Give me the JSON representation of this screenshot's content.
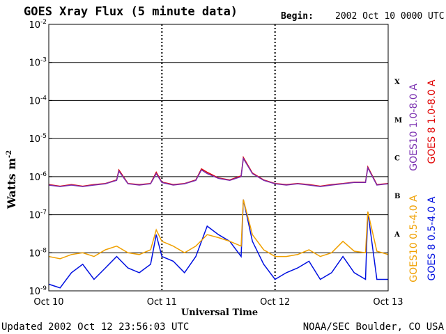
{
  "header": {
    "title": "GOES Xray Flux (5 minute data)",
    "begin_label": "Begin:",
    "begin_value": "2002 Oct 10 0000 UTC"
  },
  "footer": {
    "updated_label": "Updated",
    "updated_value": "2002 Oct 12 23:56:03 UTC",
    "credit": "NOAA/SEC Boulder, CO USA"
  },
  "colors": {
    "goes10_long": "#7a2fb0",
    "goes8_long": "#e00000",
    "goes10_short": "#f0a000",
    "goes8_short": "#0010e0"
  },
  "chart_data": {
    "type": "line",
    "title": "GOES Xray Flux (5 minute data)",
    "ylabel": "Watts m",
    "ylabel_sup": "-2",
    "xlabel": "Universal Time",
    "yscale": "log",
    "ylim": [
      1e-09,
      0.01
    ],
    "y_tick_labels": [
      {
        "base": "10",
        "exp": "-9",
        "value": 1e-09
      },
      {
        "base": "10",
        "exp": "-8",
        "value": 1e-08
      },
      {
        "base": "10",
        "exp": "-7",
        "value": 1e-07
      },
      {
        "base": "10",
        "exp": "-6",
        "value": 1e-06
      },
      {
        "base": "10",
        "exp": "-5",
        "value": 1e-05
      },
      {
        "base": "10",
        "exp": "-4",
        "value": 0.0001
      },
      {
        "base": "10",
        "exp": "-3",
        "value": 0.001
      },
      {
        "base": "10",
        "exp": "-2",
        "value": 0.01
      }
    ],
    "x_tick_labels": [
      {
        "label": "Oct 10",
        "day": 0
      },
      {
        "label": "Oct 11",
        "day": 1
      },
      {
        "label": "Oct 12",
        "day": 2
      },
      {
        "label": "Oct 13",
        "day": 3
      }
    ],
    "xlim_days": [
      0,
      3
    ],
    "flare_classes": [
      {
        "label": "A",
        "value": 3.16e-08
      },
      {
        "label": "B",
        "value": 3.16e-07
      },
      {
        "label": "C",
        "value": 3.16e-06
      },
      {
        "label": "M",
        "value": 3.16e-05
      },
      {
        "label": "X",
        "value": 0.000316
      }
    ],
    "grid": "horizontal at each decade from 1e-8 to 1e-3; dotted verticals at day boundaries",
    "legend_placement": "right, vertical text",
    "series": [
      {
        "name": "GOES10 1.0-8.0 A",
        "color": "#7a2fb0",
        "x": [
          0,
          0.1,
          0.2,
          0.3,
          0.4,
          0.5,
          0.6,
          0.62,
          0.7,
          0.8,
          0.9,
          0.95,
          1.0,
          1.1,
          1.2,
          1.3,
          1.35,
          1.4,
          1.5,
          1.6,
          1.7,
          1.72,
          1.8,
          1.9,
          2.0,
          2.1,
          2.2,
          2.3,
          2.4,
          2.5,
          2.6,
          2.7,
          2.8,
          2.82,
          2.9,
          3.0
        ],
        "y": [
          6e-07,
          5.5e-07,
          6e-07,
          5.5e-07,
          6e-07,
          6.5e-07,
          8e-07,
          1.4e-06,
          6.5e-07,
          6e-07,
          6.5e-07,
          1.2e-06,
          7e-07,
          6e-07,
          6.5e-07,
          8e-07,
          1.5e-06,
          1.2e-06,
          9e-07,
          8e-07,
          1e-06,
          3e-06,
          1.2e-06,
          8e-07,
          6.5e-07,
          6e-07,
          6.5e-07,
          6e-07,
          5.5e-07,
          6e-07,
          6.5e-07,
          7e-07,
          7e-07,
          1.7e-06,
          6e-07,
          6.5e-07
        ]
      },
      {
        "name": "GOES 8 1.0-8.0 A",
        "color": "#e00000",
        "x": [
          0,
          0.1,
          0.2,
          0.3,
          0.4,
          0.5,
          0.6,
          0.62,
          0.7,
          0.8,
          0.9,
          0.95,
          1.0,
          1.1,
          1.2,
          1.3,
          1.35,
          1.4,
          1.5,
          1.6,
          1.7,
          1.72,
          1.8,
          1.9,
          2.0,
          2.1,
          2.2,
          2.3,
          2.4,
          2.5,
          2.6,
          2.7,
          2.8,
          2.82,
          2.9,
          3.0
        ],
        "y": [
          6.2e-07,
          5.6e-07,
          6.2e-07,
          5.6e-07,
          6.2e-07,
          6.6e-07,
          8.2e-07,
          1.5e-06,
          6.6e-07,
          6.2e-07,
          6.6e-07,
          1.3e-06,
          7.2e-07,
          6.2e-07,
          6.6e-07,
          8.2e-07,
          1.6e-06,
          1.3e-06,
          9.2e-07,
          8.2e-07,
          1.05e-06,
          3.2e-06,
          1.25e-06,
          8.2e-07,
          6.6e-07,
          6.2e-07,
          6.6e-07,
          6.2e-07,
          5.6e-07,
          6.2e-07,
          6.6e-07,
          7.2e-07,
          7.2e-07,
          1.8e-06,
          6.2e-07,
          6.6e-07
        ]
      },
      {
        "name": "GOES10 0.5-4.0 A",
        "color": "#f0a000",
        "x": [
          0,
          0.1,
          0.2,
          0.3,
          0.4,
          0.5,
          0.6,
          0.7,
          0.8,
          0.9,
          0.95,
          1.0,
          1.1,
          1.2,
          1.3,
          1.4,
          1.5,
          1.6,
          1.7,
          1.72,
          1.8,
          1.9,
          2.0,
          2.1,
          2.2,
          2.3,
          2.4,
          2.5,
          2.6,
          2.7,
          2.8,
          2.82,
          2.9,
          3.0
        ],
        "y": [
          8e-09,
          7e-09,
          9e-09,
          1e-08,
          8e-09,
          1.2e-08,
          1.5e-08,
          1e-08,
          9e-09,
          1.2e-08,
          4e-08,
          2e-08,
          1.5e-08,
          1e-08,
          1.5e-08,
          3e-08,
          2.5e-08,
          2e-08,
          1.5e-08,
          2.5e-07,
          3e-08,
          1.2e-08,
          8e-09,
          8e-09,
          9e-09,
          1.2e-08,
          8e-09,
          1e-08,
          2e-08,
          1.1e-08,
          1e-08,
          1.2e-07,
          1.1e-08,
          9e-09
        ]
      },
      {
        "name": "GOES 8 0.5-4.0 A",
        "color": "#0010e0",
        "x": [
          0,
          0.1,
          0.2,
          0.3,
          0.4,
          0.5,
          0.6,
          0.7,
          0.8,
          0.9,
          0.95,
          1.0,
          1.1,
          1.2,
          1.3,
          1.4,
          1.5,
          1.6,
          1.7,
          1.72,
          1.8,
          1.9,
          2.0,
          2.1,
          2.2,
          2.3,
          2.4,
          2.5,
          2.6,
          2.7,
          2.8,
          2.82,
          2.9,
          3.0
        ],
        "y": [
          1.5e-09,
          1.2e-09,
          3e-09,
          5e-09,
          2e-09,
          4e-09,
          8e-09,
          4e-09,
          3e-09,
          5e-09,
          3e-08,
          8e-09,
          6e-09,
          3e-09,
          8e-09,
          5e-08,
          3e-08,
          2e-08,
          8e-09,
          2.5e-07,
          2e-08,
          5e-09,
          2e-09,
          3e-09,
          4e-09,
          6e-09,
          2e-09,
          3e-09,
          8e-09,
          3e-09,
          2e-09,
          1.2e-07,
          2e-09,
          2e-09
        ]
      }
    ]
  }
}
